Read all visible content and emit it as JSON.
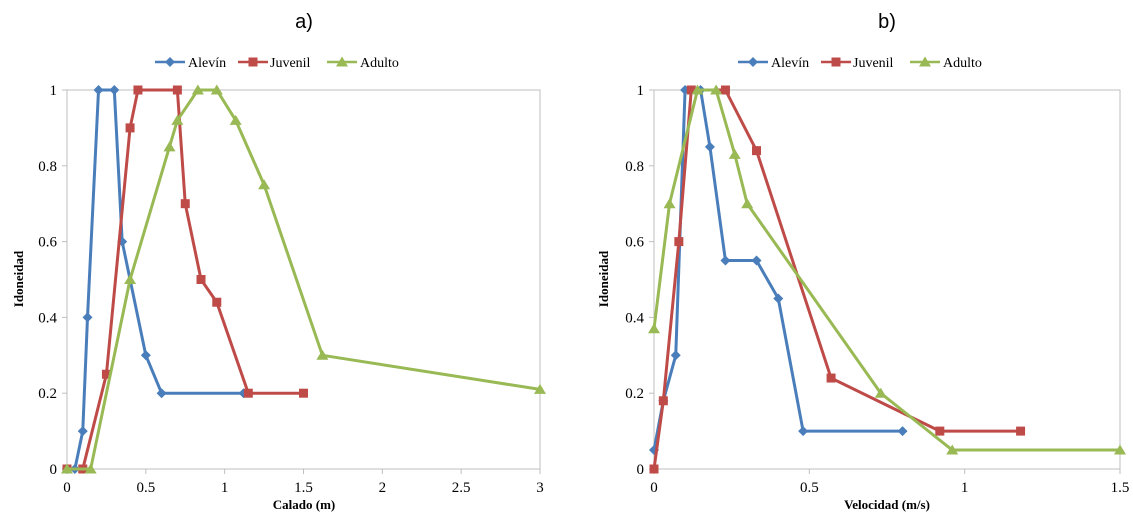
{
  "colors": {
    "Alevín": "#4a7ebb",
    "Juvenil": "#be4b48",
    "Adulto": "#98b954"
  },
  "chart_data": [
    {
      "panel": "a)",
      "type": "line",
      "xlabel": "Calado (m)",
      "ylabel": "Idoneidad",
      "xlim": [
        0,
        3
      ],
      "ylim": [
        0,
        1
      ],
      "xticks": [
        0,
        0.5,
        1,
        1.5,
        2,
        2.5,
        3
      ],
      "xtick_labels": [
        "0",
        "0.5",
        "1",
        "1.5",
        "2",
        "2.5",
        "3"
      ],
      "yticks": [
        0,
        0.2,
        0.4,
        0.6,
        0.8,
        1
      ],
      "ytick_labels": [
        "0",
        "0.2",
        "0.4",
        "0.6",
        "0.8",
        "1"
      ],
      "grid": false,
      "legend": "top-center",
      "series": [
        {
          "name": "Alevín",
          "marker": "diamond",
          "points": [
            [
              0,
              0
            ],
            [
              0.05,
              0
            ],
            [
              0.1,
              0.1
            ],
            [
              0.13,
              0.4
            ],
            [
              0.2,
              1
            ],
            [
              0.3,
              1
            ],
            [
              0.35,
              0.6
            ],
            [
              0.5,
              0.3
            ],
            [
              0.6,
              0.2
            ],
            [
              1.12,
              0.2
            ]
          ]
        },
        {
          "name": "Juvenil",
          "marker": "square",
          "points": [
            [
              0,
              0
            ],
            [
              0.1,
              0
            ],
            [
              0.25,
              0.25
            ],
            [
              0.4,
              0.9
            ],
            [
              0.45,
              1
            ],
            [
              0.7,
              1
            ],
            [
              0.75,
              0.7
            ],
            [
              0.85,
              0.5
            ],
            [
              0.95,
              0.44
            ],
            [
              1.15,
              0.2
            ],
            [
              1.5,
              0.2
            ]
          ]
        },
        {
          "name": "Adulto",
          "marker": "triangle",
          "points": [
            [
              0,
              0
            ],
            [
              0.15,
              0
            ],
            [
              0.4,
              0.5
            ],
            [
              0.65,
              0.85
            ],
            [
              0.7,
              0.92
            ],
            [
              0.83,
              1
            ],
            [
              0.95,
              1
            ],
            [
              1.07,
              0.92
            ],
            [
              1.25,
              0.75
            ],
            [
              1.62,
              0.3
            ],
            [
              3,
              0.21
            ]
          ]
        }
      ]
    },
    {
      "panel": "b)",
      "type": "line",
      "xlabel": "Velocidad (m/s)",
      "ylabel": "Idoneidad",
      "xlim": [
        0,
        1.5
      ],
      "ylim": [
        0,
        1
      ],
      "xticks": [
        0,
        0.5,
        1,
        1.5
      ],
      "xtick_labels": [
        "0",
        "0.5",
        "1",
        "1.5"
      ],
      "yticks": [
        0,
        0.2,
        0.4,
        0.6,
        0.8,
        1
      ],
      "ytick_labels": [
        "0",
        "0.2",
        "0.4",
        "0.6",
        "0.8",
        "1"
      ],
      "grid": false,
      "legend": "top-center",
      "series": [
        {
          "name": "Alevín",
          "marker": "diamond",
          "points": [
            [
              0,
              0.05
            ],
            [
              0.03,
              0.18
            ],
            [
              0.07,
              0.3
            ],
            [
              0.1,
              1
            ],
            [
              0.15,
              1
            ],
            [
              0.18,
              0.85
            ],
            [
              0.23,
              0.55
            ],
            [
              0.33,
              0.55
            ],
            [
              0.4,
              0.45
            ],
            [
              0.48,
              0.1
            ],
            [
              0.8,
              0.1
            ]
          ]
        },
        {
          "name": "Juvenil",
          "marker": "square",
          "points": [
            [
              0,
              0
            ],
            [
              0.03,
              0.18
            ],
            [
              0.08,
              0.6
            ],
            [
              0.12,
              1
            ],
            [
              0.23,
              1
            ],
            [
              0.33,
              0.84
            ],
            [
              0.57,
              0.24
            ],
            [
              0.92,
              0.1
            ],
            [
              1.18,
              0.1
            ]
          ]
        },
        {
          "name": "Adulto",
          "marker": "triangle",
          "points": [
            [
              0,
              0.37
            ],
            [
              0.05,
              0.7
            ],
            [
              0.14,
              1
            ],
            [
              0.2,
              1
            ],
            [
              0.26,
              0.83
            ],
            [
              0.3,
              0.7
            ],
            [
              0.73,
              0.2
            ],
            [
              0.96,
              0.05
            ],
            [
              1.5,
              0.05
            ]
          ]
        }
      ]
    }
  ]
}
